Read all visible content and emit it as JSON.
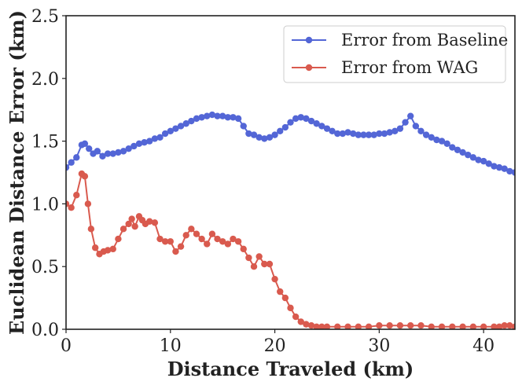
{
  "chart_data": {
    "type": "line",
    "xlabel": "Distance Traveled (km)",
    "ylabel": "Euclidean Distance Error (km)",
    "xlim": [
      0,
      43
    ],
    "ylim": [
      0,
      2.5
    ],
    "xticks": [
      0,
      10,
      20,
      30,
      40
    ],
    "xtick_labels": [
      "0",
      "10",
      "20",
      "30",
      "40"
    ],
    "yticks": [
      0,
      0.5,
      1.0,
      1.5,
      2.0,
      2.5
    ],
    "ytick_labels": [
      "0.0",
      "0.5",
      "1.0",
      "1.5",
      "2.0",
      "2.5"
    ],
    "grid": false,
    "legend_position": "top-right",
    "series": [
      {
        "name": "Error from Baseline",
        "color": "#5366d6",
        "x": [
          0,
          0.5,
          1.0,
          1.5,
          1.8,
          2.2,
          2.6,
          3.0,
          3.5,
          4.0,
          4.5,
          5.0,
          5.5,
          6.0,
          6.5,
          7.0,
          7.5,
          8.0,
          8.5,
          9.0,
          9.5,
          10.0,
          10.5,
          11.0,
          11.5,
          12.0,
          12.5,
          13.0,
          13.5,
          14.0,
          14.5,
          15.0,
          15.5,
          16.0,
          16.5,
          17.0,
          17.5,
          18.0,
          18.5,
          19.0,
          19.5,
          20.0,
          20.5,
          21.0,
          21.5,
          22.0,
          22.5,
          23.0,
          23.5,
          24.0,
          24.5,
          25.0,
          25.5,
          26.0,
          26.5,
          27.0,
          27.5,
          28.0,
          28.5,
          29.0,
          29.5,
          30.0,
          30.5,
          31.0,
          31.5,
          32.0,
          32.5,
          33.0,
          33.5,
          34.0,
          34.5,
          35.0,
          35.5,
          36.0,
          36.5,
          37.0,
          37.5,
          38.0,
          38.5,
          39.0,
          39.5,
          40.0,
          40.5,
          41.0,
          41.5,
          42.0,
          42.5,
          43.0
        ],
        "values": [
          1.29,
          1.33,
          1.37,
          1.47,
          1.48,
          1.44,
          1.4,
          1.42,
          1.38,
          1.4,
          1.4,
          1.41,
          1.42,
          1.44,
          1.46,
          1.48,
          1.49,
          1.5,
          1.52,
          1.53,
          1.56,
          1.58,
          1.6,
          1.62,
          1.64,
          1.66,
          1.68,
          1.69,
          1.7,
          1.71,
          1.7,
          1.7,
          1.69,
          1.69,
          1.68,
          1.62,
          1.56,
          1.55,
          1.53,
          1.52,
          1.53,
          1.55,
          1.58,
          1.61,
          1.65,
          1.68,
          1.69,
          1.68,
          1.66,
          1.64,
          1.62,
          1.6,
          1.58,
          1.56,
          1.56,
          1.57,
          1.56,
          1.55,
          1.55,
          1.55,
          1.55,
          1.56,
          1.56,
          1.57,
          1.58,
          1.6,
          1.65,
          1.7,
          1.62,
          1.58,
          1.55,
          1.53,
          1.51,
          1.5,
          1.48,
          1.45,
          1.43,
          1.41,
          1.39,
          1.37,
          1.35,
          1.34,
          1.32,
          1.3,
          1.29,
          1.28,
          1.26,
          1.25
        ]
      },
      {
        "name": "Error from WAG",
        "color": "#d95a4e",
        "x": [
          0,
          0.5,
          1.0,
          1.5,
          1.8,
          2.1,
          2.4,
          2.8,
          3.2,
          3.6,
          4.0,
          4.5,
          5.0,
          5.5,
          6.0,
          6.3,
          6.6,
          7.0,
          7.3,
          7.6,
          8.0,
          8.5,
          9.0,
          9.5,
          10.0,
          10.5,
          11.0,
          11.5,
          12.0,
          12.5,
          13.0,
          13.5,
          14.0,
          14.5,
          15.0,
          15.5,
          16.0,
          16.5,
          17.0,
          17.5,
          18.0,
          18.5,
          19.0,
          19.5,
          20.0,
          20.5,
          21.0,
          21.5,
          22.0,
          22.5,
          23.0,
          23.5,
          24.0,
          24.5,
          25.0,
          26.0,
          27.0,
          28.0,
          29.0,
          30.0,
          31.0,
          32.0,
          33.0,
          34.0,
          35.0,
          36.0,
          37.0,
          38.0,
          39.0,
          40.0,
          41.0,
          41.5,
          42.0,
          42.5,
          43.0
        ],
        "values": [
          1.0,
          0.97,
          1.07,
          1.24,
          1.22,
          1.0,
          0.8,
          0.65,
          0.6,
          0.62,
          0.63,
          0.64,
          0.72,
          0.8,
          0.84,
          0.88,
          0.82,
          0.9,
          0.87,
          0.84,
          0.86,
          0.85,
          0.72,
          0.7,
          0.7,
          0.62,
          0.66,
          0.75,
          0.8,
          0.76,
          0.72,
          0.68,
          0.76,
          0.72,
          0.7,
          0.68,
          0.72,
          0.7,
          0.64,
          0.57,
          0.5,
          0.58,
          0.52,
          0.52,
          0.4,
          0.3,
          0.25,
          0.17,
          0.1,
          0.06,
          0.04,
          0.03,
          0.02,
          0.02,
          0.02,
          0.02,
          0.02,
          0.02,
          0.02,
          0.03,
          0.03,
          0.03,
          0.03,
          0.03,
          0.02,
          0.02,
          0.02,
          0.02,
          0.02,
          0.02,
          0.02,
          0.02,
          0.03,
          0.03,
          0.02
        ]
      }
    ]
  }
}
